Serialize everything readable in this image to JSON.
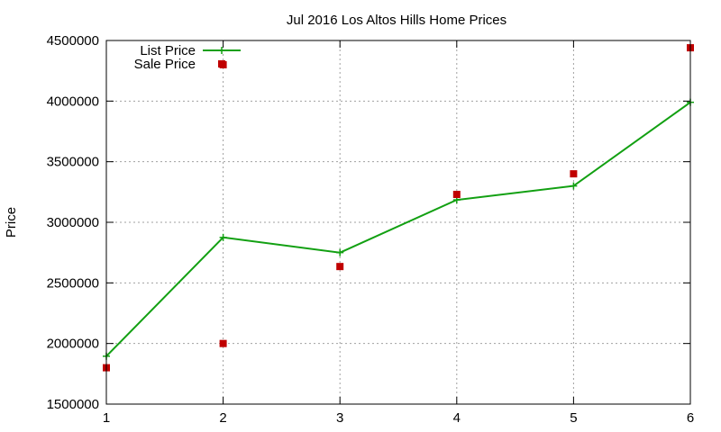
{
  "chart_data": {
    "type": "line",
    "title": "Jul 2016 Los Altos Hills Home Prices",
    "xlabel": "",
    "ylabel": "Price",
    "xlim": [
      1,
      6
    ],
    "ylim": [
      1500000,
      4500000
    ],
    "x_ticks": [
      "1",
      "2",
      "3",
      "4",
      "5",
      "6"
    ],
    "y_ticks": [
      "1500000",
      "2000000",
      "2500000",
      "3000000",
      "3500000",
      "4000000",
      "4500000"
    ],
    "grid": true,
    "legend_position": "top-left",
    "series": [
      {
        "name": "List Price",
        "style": "line-with-plus-markers",
        "color": "#12a012",
        "x": [
          1,
          2,
          3,
          4,
          5,
          6
        ],
        "values": [
          1895000,
          2875000,
          2750000,
          3185000,
          3300000,
          3990000
        ]
      },
      {
        "name": "Sale Price",
        "style": "square-markers",
        "color": "#c00000",
        "x": [
          1,
          2,
          2,
          3,
          4,
          5,
          6
        ],
        "values": [
          1800000,
          2000000,
          4300000,
          2635000,
          3230000,
          3400000,
          4440000
        ]
      }
    ]
  }
}
